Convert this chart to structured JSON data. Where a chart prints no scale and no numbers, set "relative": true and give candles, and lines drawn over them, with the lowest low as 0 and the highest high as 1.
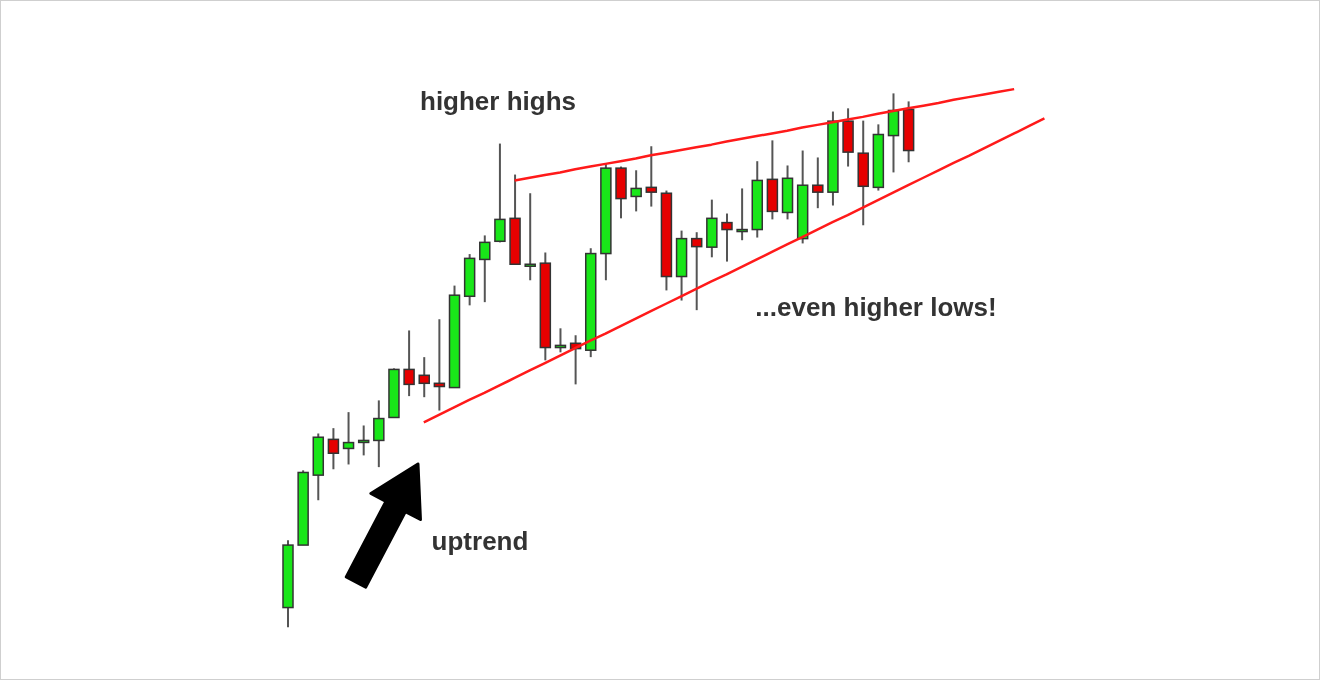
{
  "chart_data": {
    "type": "candlestick",
    "relative": true,
    "categories": [
      null,
      null,
      null,
      null,
      null,
      null,
      null,
      null,
      null,
      null,
      null,
      null,
      null,
      null,
      null,
      null,
      null,
      null,
      null,
      null,
      null,
      null,
      null,
      null,
      null,
      null,
      null,
      null,
      null,
      null,
      null,
      null,
      null,
      null,
      null,
      null,
      null,
      null,
      null,
      null,
      null,
      null,
      null,
      null,
      null,
      null,
      null,
      null,
      null,
      null,
      null
    ],
    "ohlc": [
      [
        0.037,
        0.163,
        0,
        0.154
      ],
      [
        0.154,
        0.294,
        0.154,
        0.29
      ],
      [
        0.285,
        0.363,
        0.238,
        0.356
      ],
      [
        0.352,
        0.373,
        0.296,
        0.326
      ],
      [
        0.335,
        0.403,
        0.305,
        0.346
      ],
      [
        0.348,
        0.378,
        0.322,
        0.35
      ],
      [
        0.35,
        0.425,
        0.3,
        0.391
      ],
      [
        0.393,
        0.485,
        0.393,
        0.483
      ],
      [
        0.483,
        0.556,
        0.433,
        0.455
      ],
      [
        0.472,
        0.506,
        0.431,
        0.457
      ],
      [
        0.457,
        0.577,
        0.406,
        0.451
      ],
      [
        0.449,
        0.64,
        0.449,
        0.622
      ],
      [
        0.62,
        0.699,
        0.603,
        0.691
      ],
      [
        0.689,
        0.734,
        0.609,
        0.721
      ],
      [
        0.723,
        0.906,
        0.721,
        0.764
      ],
      [
        0.766,
        0.848,
        0.68,
        0.68
      ],
      [
        0.68,
        0.813,
        0.65,
        0.68
      ],
      [
        0.682,
        0.702,
        0.5,
        0.524
      ],
      [
        0.524,
        0.56,
        0.515,
        0.528
      ],
      [
        0.532,
        0.547,
        0.455,
        0.522
      ],
      [
        0.519,
        0.71,
        0.506,
        0.7
      ],
      [
        0.7,
        0.869,
        0.65,
        0.86
      ],
      [
        0.86,
        0.863,
        0.766,
        0.803
      ],
      [
        0.807,
        0.856,
        0.779,
        0.822
      ],
      [
        0.824,
        0.901,
        0.788,
        0.815
      ],
      [
        0.813,
        0.818,
        0.631,
        0.657
      ],
      [
        0.657,
        0.743,
        0.612,
        0.728
      ],
      [
        0.728,
        0.74,
        0.594,
        0.713
      ],
      [
        0.712,
        0.801,
        0.693,
        0.766
      ],
      [
        0.758,
        0.775,
        0.685,
        0.745
      ],
      [
        0.745,
        0.822,
        0.725,
        0.745
      ],
      [
        0.745,
        0.873,
        0.73,
        0.837
      ],
      [
        0.839,
        0.912,
        0.764,
        0.779
      ],
      [
        0.777,
        0.865,
        0.764,
        0.841
      ],
      [
        0.728,
        0.893,
        0.719,
        0.828
      ],
      [
        0.828,
        0.88,
        0.785,
        0.815
      ],
      [
        0.815,
        0.966,
        0.79,
        0.948
      ],
      [
        0.948,
        0.972,
        0.863,
        0.89
      ],
      [
        0.888,
        0.949,
        0.753,
        0.826
      ],
      [
        0.824,
        0.942,
        0.818,
        0.923
      ],
      [
        0.921,
        1,
        0.852,
        0.968
      ],
      [
        0.97,
        0.985,
        0.871,
        0.893
      ],
      null,
      null,
      null,
      null,
      null,
      null,
      null,
      null,
      null
    ],
    "colors": [
      "#19e619",
      "#19e619",
      "#19e619",
      "#e60000",
      "#19e619",
      "#19e619",
      "#19e619",
      "#19e619",
      "#e60000",
      "#e60000",
      "#e60000",
      "#19e619",
      "#19e619",
      "#19e619",
      "#19e619",
      "#e60000",
      "#19e619",
      "#e60000",
      "#19e619",
      "#e60000",
      "#19e619",
      "#19e619",
      "#e60000",
      "#19e619",
      "#e60000",
      "#e60000",
      "#19e619",
      "#e60000",
      "#19e619",
      "#e60000",
      "#19e619",
      "#19e619",
      "#e60000",
      "#19e619",
      "#19e619",
      "#e60000",
      "#19e619",
      "#e60000",
      "#e60000",
      "#19e619",
      "#19e619",
      "#e60000",
      null,
      null,
      null,
      null,
      null,
      null,
      null,
      null,
      null
    ],
    "series": [
      {
        "type": "line",
        "color": "#ff1a1a",
        "values": [
          null,
          null,
          null,
          null,
          null,
          null,
          null,
          null,
          null,
          null,
          null,
          null,
          null,
          null,
          null,
          0.837,
          0.842,
          0.847,
          0.852,
          0.858,
          0.863,
          0.868,
          0.873,
          0.878,
          0.884,
          0.889,
          0.894,
          0.899,
          0.904,
          0.91,
          0.915,
          0.92,
          0.925,
          0.93,
          0.936,
          0.941,
          0.946,
          0.951,
          0.956,
          0.962,
          0.967,
          0.972,
          0.977,
          0.982,
          0.988,
          0.993,
          0.998,
          1.003,
          1.008,
          null,
          null
        ]
      },
      {
        "type": "line",
        "color": "#ff1a1a",
        "values": [
          null,
          null,
          null,
          null,
          null,
          null,
          null,
          null,
          null,
          0.384,
          0.398,
          0.412,
          0.426,
          0.439,
          0.453,
          0.467,
          0.481,
          0.495,
          0.509,
          0.523,
          0.537,
          0.55,
          0.564,
          0.578,
          0.592,
          0.606,
          0.62,
          0.634,
          0.648,
          0.661,
          0.675,
          0.689,
          0.703,
          0.717,
          0.731,
          0.745,
          0.759,
          0.772,
          0.786,
          0.8,
          0.814,
          0.828,
          0.842,
          0.856,
          0.87,
          0.883,
          0.897,
          0.911,
          0.925,
          0.939,
          0.953
        ]
      }
    ],
    "annotations": [
      "higher highs",
      "...even higher lows!",
      "uptrend"
    ]
  }
}
